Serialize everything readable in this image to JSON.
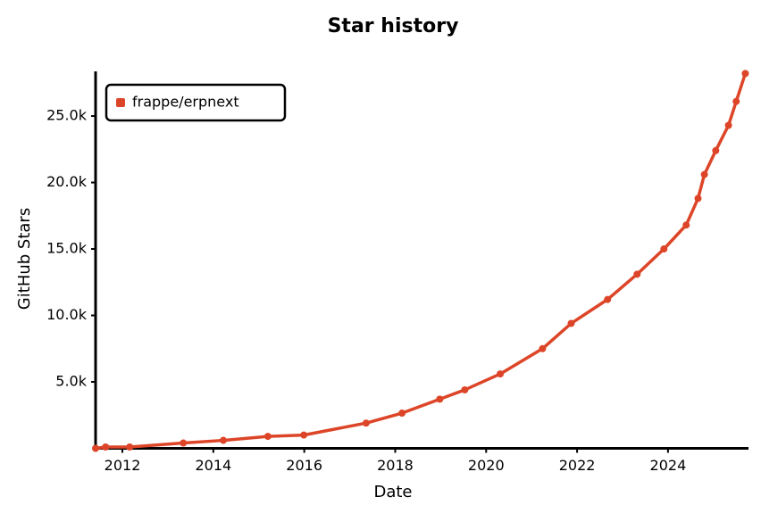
{
  "chart_data": {
    "type": "line",
    "title": "Star history",
    "x_label": "Date",
    "y_label": "GitHub Stars",
    "x": [
      2011.41,
      2011.63,
      2012.16,
      2013.34,
      2014.22,
      2015.2,
      2015.99,
      2017.36,
      2018.15,
      2018.98,
      2019.53,
      2020.31,
      2021.24,
      2021.87,
      2022.67,
      2023.32,
      2023.91,
      2024.4,
      2024.66,
      2024.8,
      2025.05,
      2025.33,
      2025.5,
      2025.7
    ],
    "series": [
      {
        "name": "frappe/erpnext",
        "color": "#dd4528",
        "values": [
          0,
          100,
          100,
          400,
          600,
          900,
          1000,
          1900,
          2650,
          3700,
          4400,
          5600,
          7500,
          9400,
          11200,
          13100,
          15000,
          16800,
          18800,
          20600,
          22400,
          24300,
          26100,
          28200
        ]
      }
    ],
    "xlim": [
      2011.41,
      2025.77
    ],
    "xticks": [
      2012,
      2014,
      2016,
      2018,
      2020,
      2022,
      2024
    ],
    "ylim": [
      0,
      28360
    ],
    "yticks": [
      {
        "value": 5000,
        "label": "5.0k"
      },
      {
        "value": 10000,
        "label": "10.0k"
      },
      {
        "value": 15000,
        "label": "15.0k"
      },
      {
        "value": 20000,
        "label": "20.0k"
      },
      {
        "value": 25000,
        "label": "25.0k"
      }
    ],
    "legend": "top-left"
  }
}
